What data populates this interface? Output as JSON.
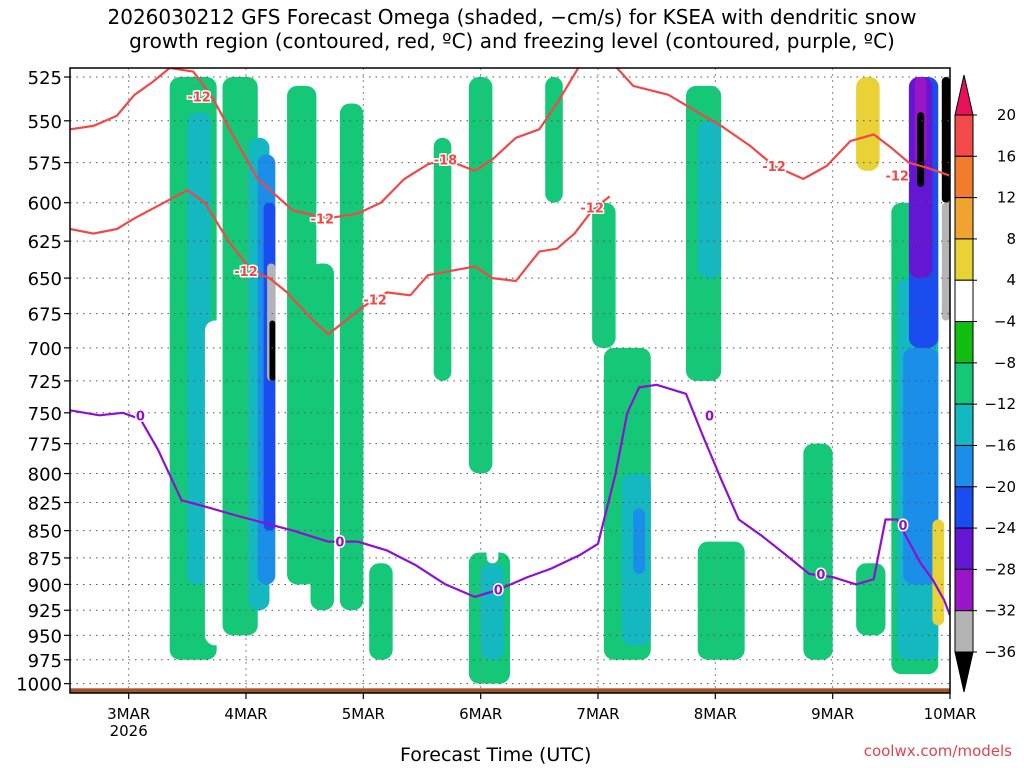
{
  "title_line1": "2026030212 GFS Forecast Omega (shaded, −cm/s) for KSEA with dendritic snow",
  "title_line2": "growth region (contoured, red, ºC) and freezing level (contoured, purple, ºC)",
  "watermark": "coolwx.com/models",
  "colors": {
    "dendritic": "#f04848",
    "freezing": "#9010d0",
    "ground": "#a0522d"
  },
  "chart_data": {
    "type": "heatmap",
    "xlabel": "Forecast Time (UTC)",
    "x_ticks": [
      {
        "label": "3MAR",
        "sub": "2026",
        "day": 3
      },
      {
        "label": "4MAR",
        "day": 4
      },
      {
        "label": "5MAR",
        "day": 5
      },
      {
        "label": "6MAR",
        "day": 6
      },
      {
        "label": "7MAR",
        "day": 7
      },
      {
        "label": "8MAR",
        "day": 8
      },
      {
        "label": "9MAR",
        "day": 9
      },
      {
        "label": "10MAR",
        "day": 10
      }
    ],
    "xlim": [
      2.5,
      10.0
    ],
    "y_ticks": [
      525,
      550,
      575,
      600,
      625,
      650,
      675,
      700,
      725,
      750,
      775,
      800,
      825,
      850,
      875,
      900,
      925,
      950,
      975,
      1000
    ],
    "ylim": [
      1010,
      520
    ],
    "y_scale": "log",
    "grid": true,
    "colorbar": {
      "labels": [
        "20",
        "16",
        "12",
        "8",
        "4",
        "−4",
        "−8",
        "−12",
        "−16",
        "−20",
        "−24",
        "−28",
        "−32",
        "−36"
      ],
      "colors": [
        "#e8105a",
        "#f44a4a",
        "#f07c2c",
        "#f0a432",
        "#e8d236",
        "#ffffff",
        "#12be12",
        "#14c878",
        "#14b8c0",
        "#1a8ee8",
        "#1a4cf0",
        "#6416d2",
        "#9a14c8",
        "#b4b4b4",
        "#000000"
      ]
    },
    "omega_blobs": [
      {
        "x0": 2.95,
        "x1": 3.1,
        "p0": 525,
        "p1": 1000,
        "v": 4
      },
      {
        "x0": 3.35,
        "x1": 3.75,
        "p0": 525,
        "p1": 975,
        "v": -8
      },
      {
        "x0": 3.5,
        "x1": 3.7,
        "p0": 545,
        "p1": 900,
        "v": -12
      },
      {
        "x0": 3.65,
        "x1": 3.85,
        "p0": 680,
        "p1": 960,
        "v": 4
      },
      {
        "x0": 3.8,
        "x1": 4.1,
        "p0": 525,
        "p1": 950,
        "v": -8
      },
      {
        "x0": 4.02,
        "x1": 4.2,
        "p0": 560,
        "p1": 925,
        "v": -12
      },
      {
        "x0": 4.1,
        "x1": 4.25,
        "p0": 570,
        "p1": 900,
        "v": -16
      },
      {
        "x0": 4.15,
        "x1": 4.25,
        "p0": 600,
        "p1": 850,
        "v": -20
      },
      {
        "x0": 4.18,
        "x1": 4.25,
        "p0": 640,
        "p1": 725,
        "v": -32
      },
      {
        "x0": 4.2,
        "x1": 4.25,
        "p0": 680,
        "p1": 725,
        "v": -36
      },
      {
        "x0": 4.35,
        "x1": 4.6,
        "p0": 530,
        "p1": 900,
        "v": -8
      },
      {
        "x0": 4.55,
        "x1": 4.75,
        "p0": 640,
        "p1": 925,
        "v": -8
      },
      {
        "x0": 4.8,
        "x1": 5.0,
        "p0": 540,
        "p1": 925,
        "v": -8
      },
      {
        "x0": 5.05,
        "x1": 5.25,
        "p0": 880,
        "p1": 975,
        "v": -8
      },
      {
        "x0": 5.6,
        "x1": 5.75,
        "p0": 560,
        "p1": 725,
        "v": -8
      },
      {
        "x0": 5.9,
        "x1": 6.1,
        "p0": 525,
        "p1": 800,
        "v": -8
      },
      {
        "x0": 5.9,
        "x1": 6.25,
        "p0": 870,
        "p1": 1000,
        "v": -8
      },
      {
        "x0": 6.0,
        "x1": 6.2,
        "p0": 880,
        "p1": 975,
        "v": -12
      },
      {
        "x0": 6.05,
        "x1": 6.15,
        "p0": 850,
        "p1": 880,
        "v": 4
      },
      {
        "x0": 6.25,
        "x1": 6.35,
        "p0": 860,
        "p1": 880,
        "v": 4
      },
      {
        "x0": 6.55,
        "x1": 6.7,
        "p0": 525,
        "p1": 600,
        "v": -8
      },
      {
        "x0": 6.95,
        "x1": 7.15,
        "p0": 600,
        "p1": 700,
        "v": -8
      },
      {
        "x0": 7.05,
        "x1": 7.45,
        "p0": 700,
        "p1": 975,
        "v": -8
      },
      {
        "x0": 7.2,
        "x1": 7.45,
        "p0": 800,
        "p1": 960,
        "v": -12
      },
      {
        "x0": 7.3,
        "x1": 7.4,
        "p0": 830,
        "p1": 890,
        "v": -16
      },
      {
        "x0": 7.75,
        "x1": 8.05,
        "p0": 530,
        "p1": 725,
        "v": -8
      },
      {
        "x0": 7.85,
        "x1": 8.05,
        "p0": 550,
        "p1": 650,
        "v": -12
      },
      {
        "x0": 7.85,
        "x1": 8.25,
        "p0": 860,
        "p1": 975,
        "v": -8
      },
      {
        "x0": 8.3,
        "x1": 8.5,
        "p0": 600,
        "p1": 725,
        "v": 4
      },
      {
        "x0": 8.4,
        "x1": 8.55,
        "p0": 700,
        "p1": 775,
        "v": 4
      },
      {
        "x0": 8.75,
        "x1": 9.0,
        "p0": 775,
        "p1": 975,
        "v": -8
      },
      {
        "x0": 9.05,
        "x1": 9.3,
        "p0": 525,
        "p1": 650,
        "v": 4
      },
      {
        "x0": 9.2,
        "x1": 9.4,
        "p0": 525,
        "p1": 580,
        "v": 8
      },
      {
        "x0": 9.2,
        "x1": 9.45,
        "p0": 880,
        "p1": 950,
        "v": -8
      },
      {
        "x0": 9.5,
        "x1": 9.9,
        "p0": 600,
        "p1": 990,
        "v": -8
      },
      {
        "x0": 9.55,
        "x1": 9.9,
        "p0": 650,
        "p1": 975,
        "v": -12
      },
      {
        "x0": 9.6,
        "x1": 9.9,
        "p0": 700,
        "p1": 900,
        "v": -16
      },
      {
        "x0": 9.65,
        "x1": 9.9,
        "p0": 525,
        "p1": 700,
        "v": -20
      },
      {
        "x0": 9.65,
        "x1": 9.85,
        "p0": 525,
        "p1": 650,
        "v": -24
      },
      {
        "x0": 9.7,
        "x1": 9.8,
        "p0": 525,
        "p1": 575,
        "v": -28
      },
      {
        "x0": 9.72,
        "x1": 9.78,
        "p0": 545,
        "p1": 590,
        "v": -36
      },
      {
        "x0": 9.85,
        "x1": 9.95,
        "p0": 840,
        "p1": 940,
        "v": 8
      },
      {
        "x0": 9.93,
        "x1": 10.0,
        "p0": 525,
        "p1": 600,
        "v": -36
      },
      {
        "x0": 9.93,
        "x1": 10.0,
        "p0": 600,
        "p1": 680,
        "v": -32
      }
    ],
    "dendritic_upper": {
      "x": [
        2.5,
        2.7,
        2.9,
        3.05,
        3.2,
        3.35,
        3.55,
        3.7,
        3.9,
        4.1,
        4.4,
        4.7,
        4.95,
        5.15,
        5.35,
        5.55,
        5.7,
        5.95,
        6.1,
        6.3,
        6.5,
        6.65,
        6.85,
        7.05,
        7.3,
        7.6,
        7.85,
        8.05,
        8.3,
        8.5,
        8.75,
        8.95,
        9.15,
        9.35,
        9.5,
        9.65,
        9.8,
        10.0
      ],
      "p": [
        555,
        553,
        547,
        535,
        528,
        520,
        522,
        535,
        560,
        585,
        605,
        610,
        607,
        600,
        585,
        576,
        573,
        580,
        573,
        560,
        555,
        540,
        518,
        512,
        530,
        535,
        545,
        553,
        565,
        577,
        585,
        577,
        562,
        558,
        566,
        575,
        578,
        583
      ]
    },
    "dendritic_lower": {
      "x": [
        2.5,
        2.7,
        2.9,
        3.05,
        3.3,
        3.5,
        3.65,
        3.85,
        4.05,
        4.2,
        4.35,
        4.55,
        4.7,
        4.85,
        5.0,
        5.2,
        5.4,
        5.55,
        5.75,
        5.95,
        6.1,
        6.3,
        6.5,
        6.65,
        6.8,
        6.95,
        7.1
      ],
      "p": [
        617,
        620,
        617,
        610,
        600,
        592,
        600,
        625,
        645,
        650,
        660,
        678,
        690,
        680,
        670,
        660,
        662,
        648,
        645,
        642,
        650,
        652,
        632,
        630,
        620,
        605,
        596
      ]
    },
    "freezing_level": {
      "x": [
        2.5,
        2.75,
        2.95,
        3.1,
        3.25,
        3.45,
        3.7,
        3.9,
        4.15,
        4.4,
        4.7,
        4.95,
        5.2,
        5.45,
        5.7,
        5.95,
        6.15,
        6.4,
        6.6,
        6.85,
        7.0,
        7.15,
        7.25,
        7.35,
        7.5,
        7.75,
        7.9,
        8.05,
        8.2,
        8.4,
        8.6,
        8.8,
        9.0,
        9.2,
        9.35,
        9.45,
        9.55,
        9.65,
        9.75,
        9.85,
        9.95,
        10.0
      ],
      "p": [
        748,
        752,
        750,
        755,
        780,
        823,
        830,
        836,
        843,
        850,
        860,
        860,
        868,
        882,
        900,
        912,
        905,
        893,
        885,
        872,
        862,
        800,
        750,
        730,
        728,
        735,
        770,
        805,
        840,
        855,
        872,
        890,
        893,
        900,
        895,
        840,
        840,
        860,
        880,
        895,
        915,
        930
      ]
    },
    "contour_labels": [
      {
        "text": "-18",
        "x": 5.7,
        "p": 573,
        "line": "dendritic"
      },
      {
        "text": "-12",
        "x": 4.65,
        "p": 610,
        "line": "dendritic"
      },
      {
        "text": "-12",
        "x": 4.0,
        "p": 645,
        "line": "dendritic"
      },
      {
        "text": "-12",
        "x": 5.1,
        "p": 665,
        "line": "dendritic"
      },
      {
        "text": "-12",
        "x": 6.95,
        "p": 603,
        "line": "dendritic"
      },
      {
        "text": "-12",
        "x": 8.5,
        "p": 577,
        "line": "dendritic"
      },
      {
        "text": "-12",
        "x": 9.55,
        "p": 583,
        "line": "dendritic"
      },
      {
        "text": "-12",
        "x": 3.6,
        "p": 536,
        "line": "dendritic"
      },
      {
        "text": "0",
        "x": 3.1,
        "p": 752,
        "line": "freezing"
      },
      {
        "text": "0",
        "x": 4.8,
        "p": 860,
        "line": "freezing"
      },
      {
        "text": "0",
        "x": 6.15,
        "p": 905,
        "line": "freezing"
      },
      {
        "text": "0",
        "x": 7.95,
        "p": 752,
        "line": "freezing"
      },
      {
        "text": "0",
        "x": 8.9,
        "p": 890,
        "line": "freezing"
      },
      {
        "text": "0",
        "x": 9.6,
        "p": 845,
        "line": "freezing"
      }
    ]
  }
}
